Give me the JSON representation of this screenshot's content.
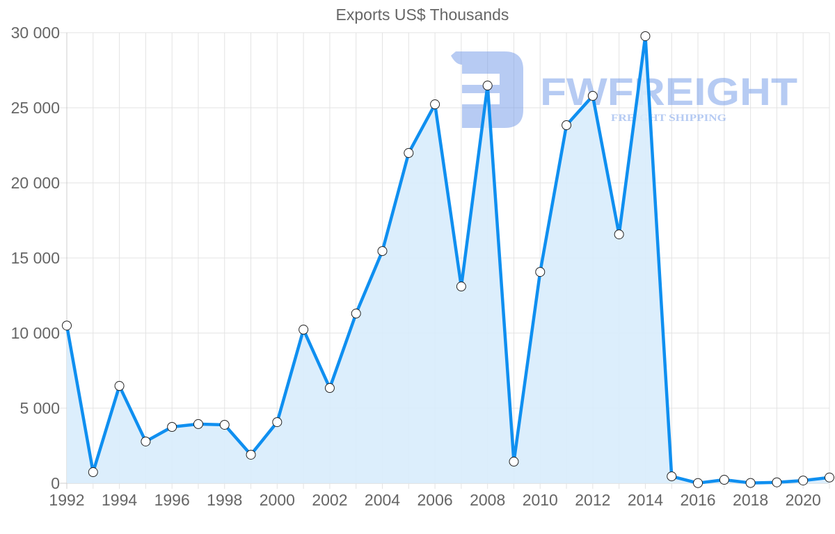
{
  "chart_data": {
    "type": "area",
    "title": "Exports US$ Thousands",
    "xlabel": "",
    "ylabel": "",
    "x": [
      1992,
      1993,
      1994,
      1995,
      1996,
      1997,
      1998,
      1999,
      2000,
      2001,
      2002,
      2003,
      2004,
      2005,
      2006,
      2007,
      2008,
      2009,
      2010,
      2011,
      2012,
      2013,
      2014,
      2015,
      2016,
      2017,
      2018,
      2019,
      2020,
      2021
    ],
    "series": [
      {
        "name": "Exports US$ Thousands",
        "values": [
          10500,
          740,
          6480,
          2780,
          3750,
          3940,
          3890,
          1900,
          4070,
          10230,
          6340,
          11300,
          15460,
          21990,
          25230,
          13100,
          26480,
          1440,
          14070,
          23840,
          25790,
          16570,
          29770,
          460,
          10,
          230,
          20,
          60,
          180,
          380
        ]
      }
    ],
    "xticks": [
      "1992",
      "1994",
      "1996",
      "1998",
      "2000",
      "2002",
      "2004",
      "2006",
      "2008",
      "2010",
      "2012",
      "2014",
      "2016",
      "2018",
      "2020"
    ],
    "yticks": [
      "0",
      "5 000",
      "10 000",
      "15 000",
      "20 000",
      "25 000",
      "30 000"
    ],
    "ylim": [
      0,
      30000
    ],
    "xlim": [
      1992,
      2021
    ],
    "grid": true,
    "legend": "none",
    "colors": {
      "line": "#0f8ff0",
      "fill": "#d8ecfc",
      "marker_fill": "#ffffff",
      "marker_stroke": "#222222",
      "grid": "#e3e3e3",
      "axis_text": "#666666"
    }
  },
  "watermark": {
    "brand": "FWFREIGHT",
    "tagline": "FREIGHT SHIPPING",
    "color": "#6f98e8"
  }
}
